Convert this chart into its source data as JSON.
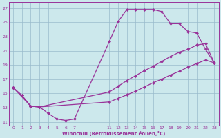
{
  "xlabel": "Windchill (Refroidissement éolien,°C)",
  "background_color": "#cce8ec",
  "line_color": "#993399",
  "grid_color": "#99bbcc",
  "xlim": [
    -0.5,
    23.5
  ],
  "ylim": [
    10.5,
    27.8
  ],
  "xticks": [
    0,
    1,
    2,
    3,
    4,
    5,
    6,
    7,
    11,
    12,
    13,
    14,
    15,
    16,
    17,
    18,
    19,
    20,
    21,
    22,
    23
  ],
  "yticks": [
    11,
    13,
    15,
    17,
    19,
    21,
    23,
    25,
    27
  ],
  "curve1_x": [
    0,
    1,
    2,
    3,
    4,
    5,
    6,
    7,
    11,
    12,
    13,
    14,
    15,
    16,
    17,
    18,
    19,
    20,
    21,
    22,
    23
  ],
  "curve1_y": [
    15.8,
    14.7,
    13.2,
    13.1,
    12.2,
    11.4,
    11.2,
    11.4,
    22.3,
    25.1,
    26.8,
    26.8,
    26.8,
    26.8,
    26.5,
    24.8,
    24.8,
    23.7,
    23.5,
    21.2,
    19.3
  ],
  "curve2_x": [
    0,
    2,
    3,
    11,
    12,
    13,
    14,
    15,
    16,
    17,
    18,
    19,
    20,
    21,
    22,
    23
  ],
  "curve2_y": [
    15.8,
    13.2,
    13.1,
    15.2,
    16.0,
    16.8,
    17.5,
    18.2,
    18.8,
    19.5,
    20.2,
    20.8,
    21.2,
    21.8,
    22.0,
    19.3
  ],
  "curve3_x": [
    0,
    1,
    2,
    3,
    11,
    12,
    13,
    14,
    15,
    16,
    17,
    18,
    19,
    20,
    21,
    22,
    23
  ],
  "curve3_y": [
    15.8,
    14.7,
    13.2,
    13.1,
    13.8,
    14.3,
    14.8,
    15.3,
    15.9,
    16.5,
    17.0,
    17.6,
    18.1,
    18.7,
    19.2,
    19.7,
    19.3
  ]
}
